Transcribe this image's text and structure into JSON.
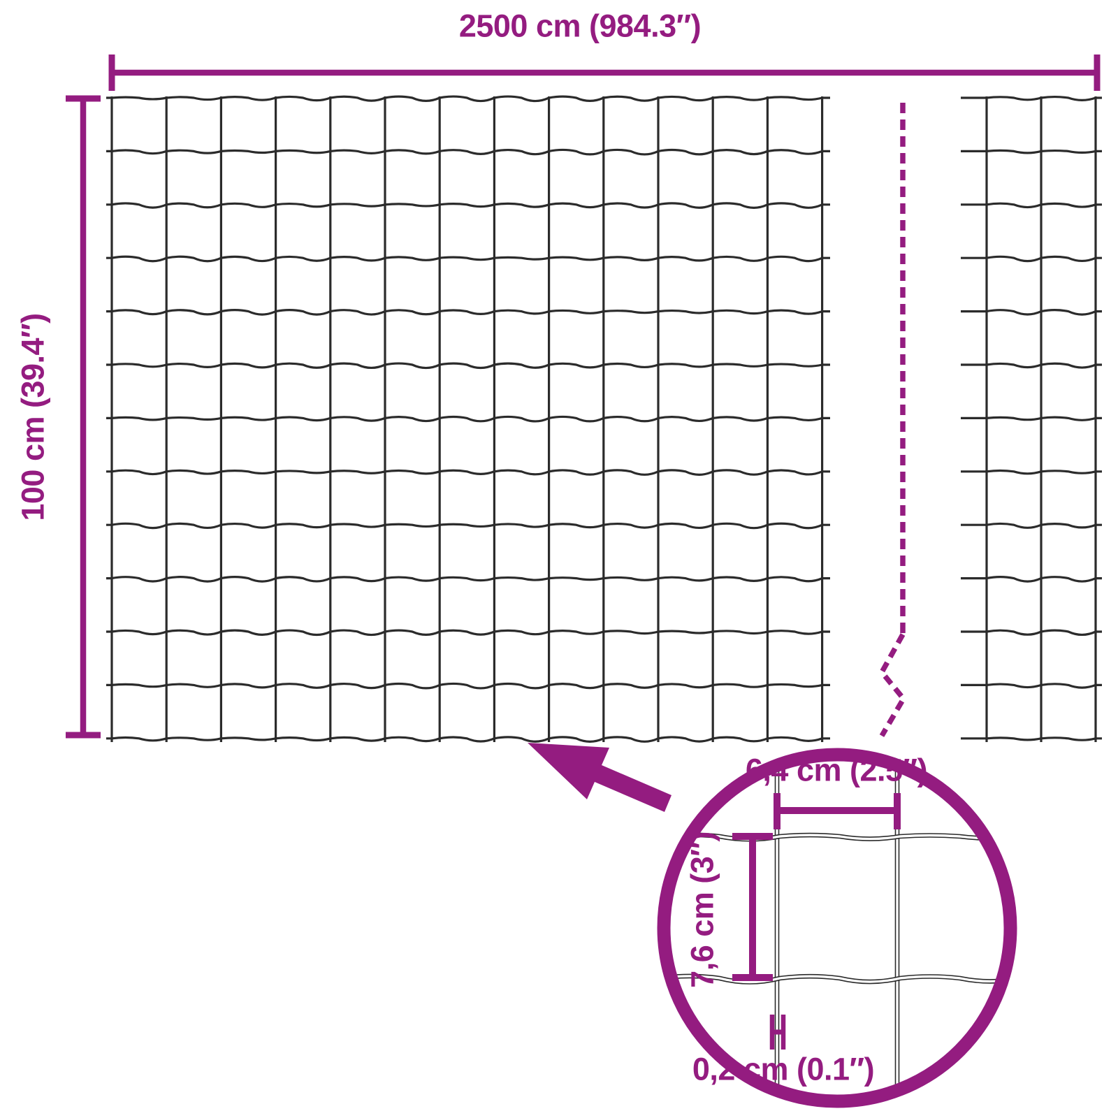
{
  "colors": {
    "accent": "#941c80",
    "wire": "#2b2b2b"
  },
  "dimensions": {
    "total_width": "2500 cm (984.3″)",
    "total_height": "100 cm (39.4″)",
    "detail": {
      "mesh_width": "6,4 cm (2.5″)",
      "mesh_height": "7,6 cm (3″)",
      "wire_thickness": "0,2 cm (0.1″)"
    }
  }
}
